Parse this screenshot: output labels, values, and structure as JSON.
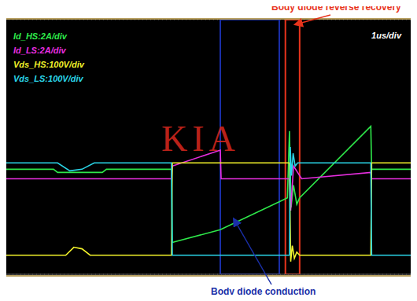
{
  "chart_data": {
    "type": "line",
    "timebase_label": "1us/div",
    "watermark": "KIA",
    "xlim": [
      0,
      10
    ],
    "xticks": [
      0,
      1,
      2,
      3,
      4,
      5,
      6,
      7,
      8,
      9,
      10
    ],
    "ylim": [
      -4,
      4
    ],
    "yticks": [
      -4,
      -3,
      -2,
      -1,
      0,
      1,
      2,
      3,
      4
    ],
    "grid": true,
    "tick_labels": false,
    "legend": "upper left",
    "series": [
      {
        "name": "Id_HS:2A/div",
        "color": "#2ee84a",
        "x": [
          0,
          1.2,
          1.3,
          2.4,
          2.5,
          4.1,
          4.12,
          5.3,
          6.95,
          7.0,
          7.04,
          7.1,
          7.18,
          7.25,
          9.0,
          9.02,
          10
        ],
        "values": [
          -0.7,
          -0.7,
          -0.8,
          -0.8,
          -0.7,
          -0.7,
          -3.0,
          -2.6,
          -1.6,
          0.5,
          -1.9,
          -1.2,
          -1.8,
          -1.6,
          0.65,
          -0.7,
          -0.7
        ]
      },
      {
        "name": "Id_LS:2A/div",
        "color": "#e82ee0",
        "x": [
          0,
          4.1,
          4.12,
          5.3,
          5.32,
          7.0,
          7.03,
          7.1,
          7.3,
          9.0,
          9.02,
          10
        ],
        "values": [
          -1.0,
          -1.0,
          -0.6,
          -0.1,
          -1.0,
          -1.0,
          -2.0,
          -0.6,
          -1.0,
          -0.8,
          -1.0,
          -1.0
        ]
      },
      {
        "name": "Vds_HS:100V/div",
        "color": "#f2f22a",
        "x": [
          0,
          1.5,
          1.7,
          1.9,
          2.1,
          4.1,
          4.12,
          7.0,
          7.03,
          7.07,
          7.12,
          7.18,
          7.25,
          9.0,
          9.02,
          10
        ],
        "values": [
          -3.4,
          -3.4,
          -3.15,
          -3.2,
          -3.4,
          -3.4,
          -0.5,
          -0.5,
          -3.6,
          -3.1,
          -3.5,
          -3.3,
          -3.4,
          -3.4,
          -0.5,
          -0.5
        ]
      },
      {
        "name": "Vds_LS:100V/div",
        "color": "#2ad6e8",
        "x": [
          0,
          1.3,
          1.6,
          1.9,
          2.2,
          4.1,
          4.12,
          7.0,
          7.02,
          7.05,
          7.09,
          7.14,
          7.2,
          9.0,
          9.02,
          10
        ],
        "values": [
          -0.5,
          -0.5,
          -0.75,
          -0.7,
          -0.5,
          -0.5,
          -3.4,
          -3.4,
          0.0,
          -0.9,
          -0.2,
          -0.6,
          -0.5,
          -0.5,
          -3.4,
          -3.4
        ]
      }
    ],
    "annotations": [
      {
        "text": "Body diode reverse recovery",
        "color": "#e8341c",
        "x_range": [
          6.9,
          7.25
        ]
      },
      {
        "text": "Body diode conduction",
        "color": "#1a2fa8",
        "x_range": [
          5.3,
          6.75
        ]
      }
    ]
  }
}
